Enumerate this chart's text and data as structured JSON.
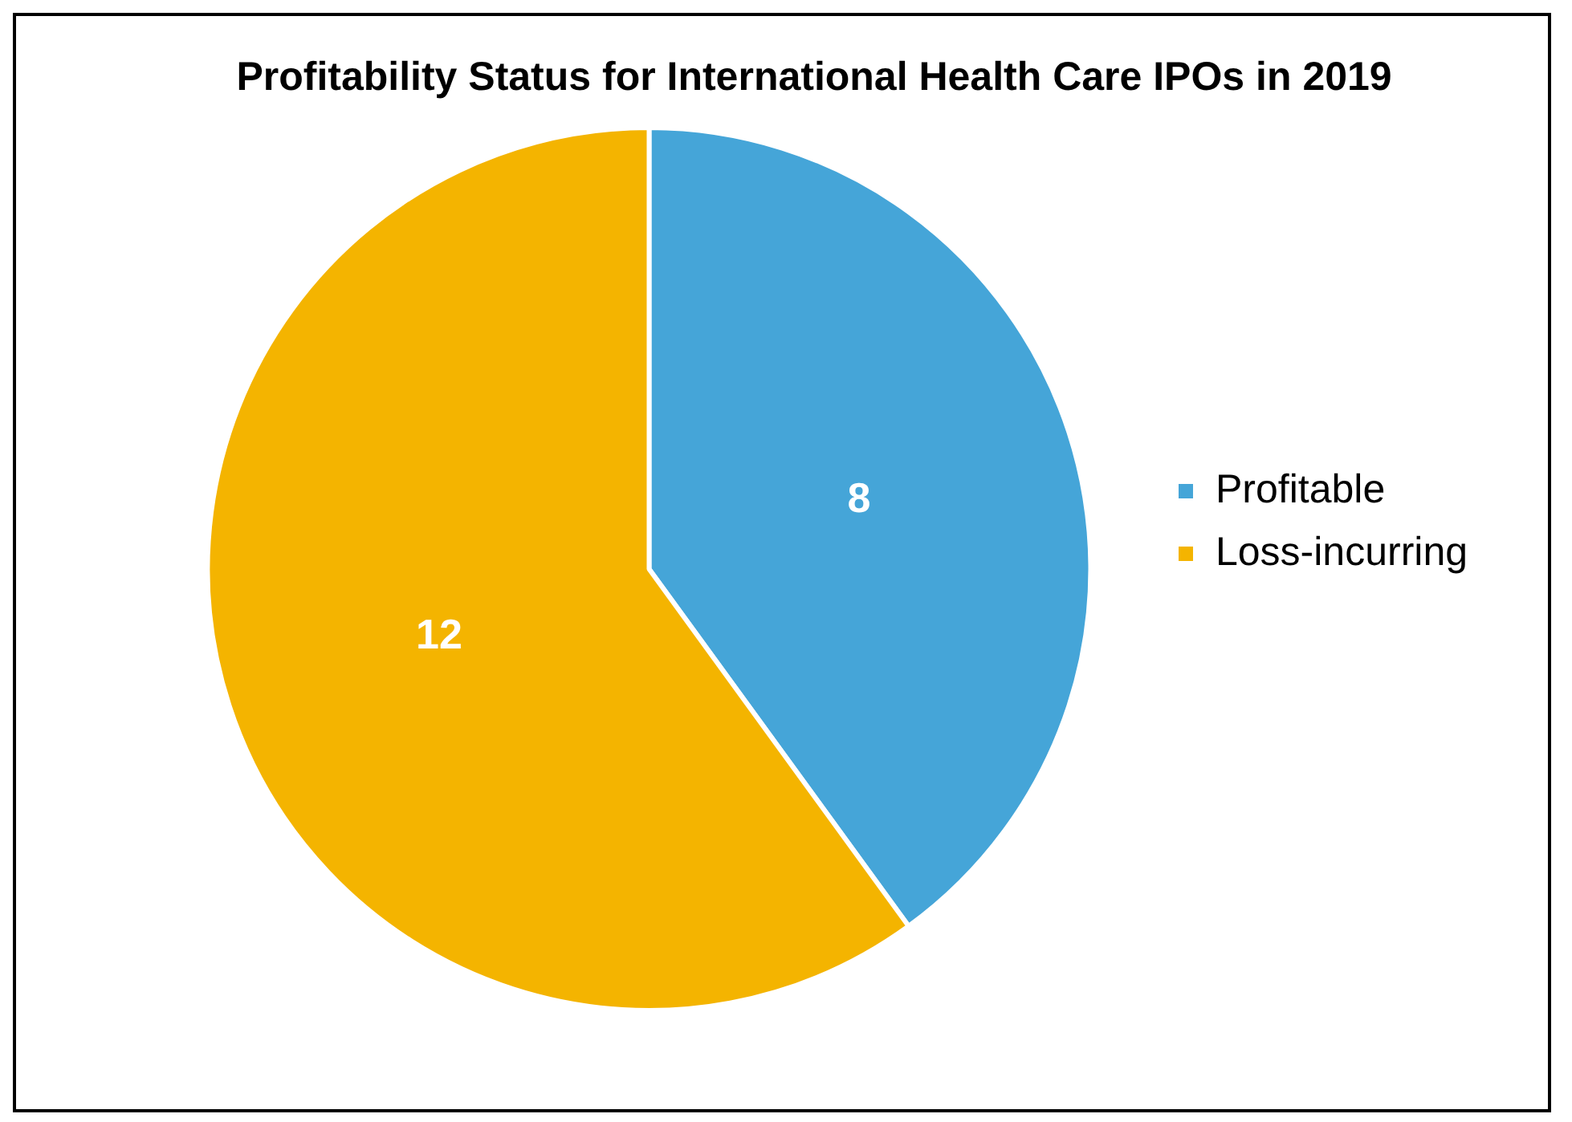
{
  "chart_data": {
    "type": "pie",
    "title": "Profitability Status for International Health Care IPOs in 2019",
    "categories": [
      "Profitable",
      "Loss-incurring"
    ],
    "values": [
      8,
      12
    ],
    "colors": [
      "#45a5d8",
      "#f4b400"
    ],
    "data_labels": true,
    "legend": "right"
  }
}
